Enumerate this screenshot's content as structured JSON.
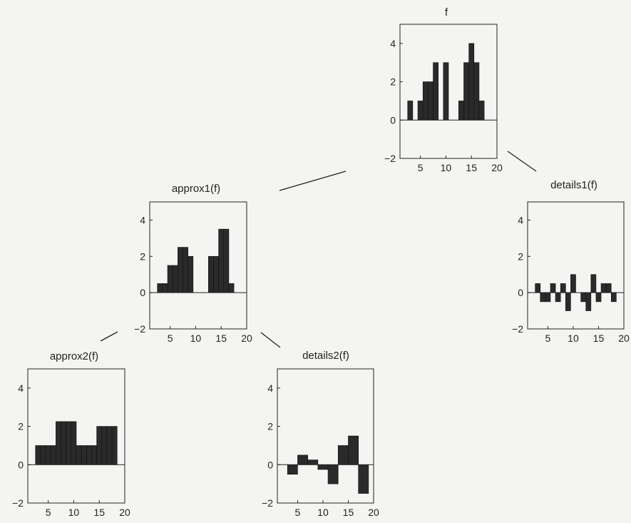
{
  "colors": {
    "bar": "#2a2a2a",
    "axis": "#222222",
    "connector": "#222222"
  },
  "chart_data": [
    {
      "id": "f",
      "type": "bar",
      "title": "f",
      "xlabel": "",
      "ylabel": "",
      "xlim": [
        1,
        20
      ],
      "ylim": [
        -2,
        5
      ],
      "xticks": [
        5,
        10,
        15,
        20
      ],
      "yticks": [
        -2,
        0,
        2,
        4
      ],
      "grid": false,
      "bar_width": 1,
      "x": [
        3,
        5,
        6,
        7,
        8,
        9,
        10,
        13,
        14,
        15,
        16,
        17
      ],
      "values": [
        1,
        1,
        2,
        2,
        3,
        0,
        3,
        1,
        3,
        4,
        3,
        1
      ]
    },
    {
      "id": "approx1",
      "type": "bar",
      "title": "approx1(f)",
      "xlabel": "",
      "ylabel": "",
      "xlim": [
        1,
        20
      ],
      "ylim": [
        -2,
        5
      ],
      "xticks": [
        5,
        10,
        15,
        20
      ],
      "yticks": [
        -2,
        0,
        2,
        4
      ],
      "grid": false,
      "bar_width": 1,
      "x": [
        3,
        4,
        5,
        6,
        7,
        8,
        9,
        13,
        14,
        15,
        16,
        17
      ],
      "values": [
        0.5,
        0.5,
        1.5,
        1.5,
        2.5,
        2.5,
        2,
        2,
        2,
        3.5,
        3.5,
        0.5
      ]
    },
    {
      "id": "details1",
      "type": "bar",
      "title": "details1(f)",
      "xlabel": "",
      "ylabel": "",
      "xlim": [
        1,
        20
      ],
      "ylim": [
        -2,
        5
      ],
      "xticks": [
        5,
        10,
        15,
        20
      ],
      "yticks": [
        -2,
        0,
        2,
        4
      ],
      "grid": false,
      "bar_width": 1,
      "x": [
        3,
        4,
        5,
        6,
        7,
        8,
        9,
        10,
        12,
        13,
        14,
        15,
        16,
        17,
        18
      ],
      "values": [
        0.5,
        -0.5,
        -0.5,
        0.5,
        -0.5,
        0.5,
        -1,
        1,
        -0.5,
        -1,
        1,
        -0.5,
        0.5,
        0.5,
        -0.5
      ]
    },
    {
      "id": "approx2",
      "type": "bar",
      "title": "approx2(f)",
      "xlabel": "",
      "ylabel": "",
      "xlim": [
        1,
        20
      ],
      "ylim": [
        -2,
        5
      ],
      "xticks": [
        5,
        10,
        15,
        20
      ],
      "yticks": [
        -2,
        0,
        2,
        4
      ],
      "grid": false,
      "bar_width": 1,
      "x": [
        3,
        4,
        5,
        6,
        7,
        8,
        9,
        10,
        11,
        12,
        13,
        14,
        15,
        16,
        17,
        18
      ],
      "values": [
        1,
        1,
        1,
        1,
        2.25,
        2.25,
        2.25,
        2.25,
        1,
        1,
        1,
        1,
        2,
        2,
        2,
        2
      ]
    },
    {
      "id": "details2",
      "type": "bar",
      "title": "details2(f)",
      "xlabel": "",
      "ylabel": "",
      "xlim": [
        1,
        20
      ],
      "ylim": [
        -2,
        5
      ],
      "xticks": [
        5,
        10,
        15,
        20
      ],
      "yticks": [
        -2,
        0,
        2,
        4
      ],
      "grid": false,
      "bar_width": 2,
      "x": [
        4,
        6,
        8,
        10,
        12,
        14,
        16,
        18
      ],
      "values": [
        -0.5,
        0.5,
        0.25,
        -0.25,
        -1,
        1,
        1.5,
        -1.5
      ]
    }
  ]
}
